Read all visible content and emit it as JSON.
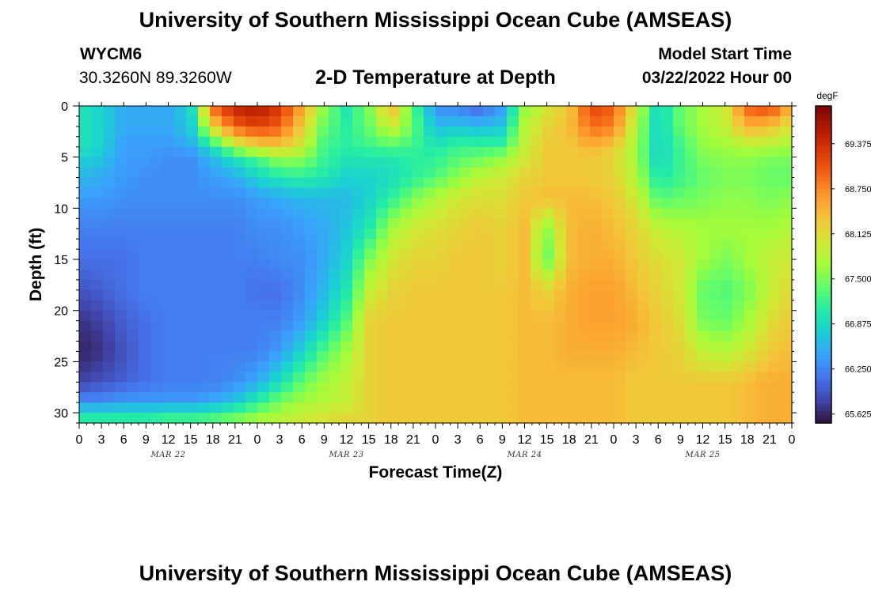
{
  "header": {
    "title": "University of Southern Mississippi Ocean Cube (AMSEAS)",
    "station": "WYCM6",
    "coords": "30.3260N  89.3260W",
    "plot_title": "2-D Temperature at Depth",
    "model_start_label": "Model Start Time",
    "model_start_value": "03/22/2022 Hour 00"
  },
  "footer": {
    "title": "University of Southern Mississippi Ocean Cube (AMSEAS)"
  },
  "colors": {
    "scale": [
      "#30123b",
      "#4145ab",
      "#4675ed",
      "#39a2fc",
      "#1bcfd4",
      "#24eca6",
      "#61fc6c",
      "#a4fc3b",
      "#d1e834",
      "#f3c63a",
      "#fe9b2d",
      "#f36315",
      "#d93806",
      "#b11901",
      "#7a0402"
    ]
  },
  "chart_data": {
    "type": "heatmap",
    "title": "2-D Temperature at Depth",
    "xlabel": "Forecast Time(Z)",
    "ylabel": "Depth (ft)",
    "x_hours_range": [
      0,
      96
    ],
    "y_depth_range": [
      0,
      31
    ],
    "x_tick_labels": [
      "0",
      "3",
      "6",
      "9",
      "12",
      "15",
      "18",
      "21",
      "0",
      "3",
      "6",
      "9",
      "12",
      "15",
      "18",
      "21",
      "0",
      "3",
      "6",
      "9",
      "12",
      "15",
      "18",
      "21",
      "0",
      "3",
      "6",
      "9",
      "12",
      "15",
      "18",
      "21",
      "0"
    ],
    "date_labels": [
      {
        "label": "MAR 22",
        "hour": 12
      },
      {
        "label": "MAR 23",
        "hour": 36
      },
      {
        "label": "MAR 24",
        "hour": 60
      },
      {
        "label": "MAR 25",
        "hour": 84
      }
    ],
    "y_ticks": [
      0,
      5,
      10,
      15,
      20,
      25,
      30
    ],
    "colorbar": {
      "unit": "degF",
      "min": 65.5,
      "max": 69.9,
      "ticks": [
        65.625,
        66.25,
        66.875,
        67.5,
        68.125,
        68.75,
        69.375
      ],
      "tick_labels": [
        "65.625",
        "66.250",
        "66.875",
        "67.500",
        "68.125",
        "68.750",
        "69.375"
      ]
    },
    "grid": {
      "depths": [
        0,
        2,
        4,
        5,
        7,
        9,
        12,
        15,
        18,
        21,
        24,
        27,
        29,
        30,
        31
      ],
      "hours": [
        0,
        3,
        6,
        9,
        12,
        15,
        18,
        21,
        24,
        27,
        30,
        33,
        36,
        39,
        42,
        45,
        48,
        51,
        54,
        57,
        60,
        63,
        66,
        69,
        72,
        75,
        78,
        81,
        84,
        87,
        90,
        93,
        96
      ],
      "values": [
        [
          67.0,
          66.8,
          66.5,
          66.5,
          66.5,
          66.8,
          69.0,
          69.5,
          69.6,
          69.3,
          68.6,
          67.6,
          67.0,
          67.5,
          68.5,
          67.3,
          66.3,
          66.2,
          66.0,
          66.4,
          67.6,
          68.0,
          68.3,
          69.2,
          69.0,
          68.0,
          66.8,
          67.4,
          67.7,
          68.0,
          69.0,
          69.2,
          68.5
        ],
        [
          67.0,
          66.8,
          66.5,
          66.5,
          66.5,
          66.7,
          68.2,
          69.0,
          69.2,
          69.0,
          68.3,
          67.4,
          67.1,
          67.4,
          68.0,
          67.4,
          66.6,
          66.7,
          66.6,
          66.7,
          67.8,
          68.2,
          68.4,
          68.9,
          68.8,
          67.8,
          66.8,
          67.4,
          67.7,
          67.9,
          68.5,
          68.4,
          68.0
        ],
        [
          67.0,
          66.8,
          66.4,
          66.4,
          66.4,
          66.5,
          67.0,
          67.8,
          68.2,
          68.3,
          68.0,
          67.2,
          67.1,
          67.2,
          67.3,
          67.2,
          67.0,
          67.2,
          67.2,
          67.2,
          67.9,
          68.3,
          68.3,
          68.5,
          68.3,
          67.7,
          66.8,
          67.2,
          67.6,
          67.7,
          67.8,
          67.8,
          67.7
        ],
        [
          66.8,
          66.7,
          66.4,
          66.4,
          66.3,
          66.3,
          66.6,
          67.0,
          67.3,
          67.7,
          67.6,
          67.2,
          67.0,
          67.0,
          67.0,
          67.1,
          67.1,
          67.3,
          67.4,
          67.6,
          68.0,
          68.3,
          68.3,
          68.3,
          68.2,
          67.7,
          66.8,
          67.2,
          67.5,
          67.6,
          67.6,
          67.5,
          67.5
        ],
        [
          66.6,
          66.5,
          66.4,
          66.3,
          66.3,
          66.3,
          66.4,
          66.5,
          66.8,
          67.0,
          67.1,
          67.0,
          66.8,
          66.8,
          66.9,
          67.1,
          67.3,
          67.6,
          67.9,
          68.0,
          68.2,
          68.3,
          68.3,
          68.3,
          68.2,
          67.8,
          67.0,
          67.2,
          67.4,
          67.5,
          67.5,
          67.4,
          67.4
        ],
        [
          66.4,
          66.4,
          66.3,
          66.3,
          66.3,
          66.3,
          66.3,
          66.3,
          66.4,
          66.5,
          66.6,
          66.6,
          66.6,
          66.8,
          67.1,
          67.5,
          67.8,
          68.0,
          68.1,
          68.1,
          68.3,
          68.4,
          68.4,
          68.4,
          68.3,
          68.0,
          67.3,
          67.4,
          67.5,
          67.6,
          67.6,
          67.5,
          67.6
        ],
        [
          66.2,
          66.2,
          66.2,
          66.2,
          66.2,
          66.2,
          66.2,
          66.2,
          66.3,
          66.3,
          66.4,
          66.5,
          66.7,
          67.0,
          67.7,
          68.0,
          68.1,
          68.2,
          68.3,
          68.2,
          68.4,
          67.6,
          68.4,
          68.5,
          68.4,
          68.2,
          67.9,
          67.8,
          67.7,
          67.7,
          67.7,
          67.7,
          67.8
        ],
        [
          66.1,
          66.1,
          66.1,
          66.2,
          66.2,
          66.2,
          66.2,
          66.2,
          66.2,
          66.3,
          66.3,
          66.5,
          66.8,
          67.5,
          68.0,
          68.2,
          68.2,
          68.3,
          68.3,
          68.2,
          68.4,
          67.4,
          68.4,
          68.5,
          68.5,
          68.3,
          68.1,
          68.0,
          67.7,
          67.5,
          67.7,
          67.9,
          68.0
        ],
        [
          65.9,
          66.0,
          66.1,
          66.2,
          66.2,
          66.2,
          66.2,
          66.2,
          66.1,
          66.1,
          66.3,
          66.6,
          67.0,
          67.9,
          68.2,
          68.3,
          68.3,
          68.3,
          68.3,
          68.3,
          68.4,
          68.2,
          68.5,
          68.6,
          68.6,
          68.4,
          68.2,
          68.0,
          67.4,
          67.3,
          67.5,
          67.9,
          68.2
        ],
        [
          65.7,
          65.8,
          66.0,
          66.1,
          66.2,
          66.2,
          66.2,
          66.2,
          66.2,
          66.2,
          66.4,
          66.8,
          67.3,
          68.2,
          68.3,
          68.3,
          68.3,
          68.3,
          68.3,
          68.3,
          68.4,
          68.4,
          68.5,
          68.6,
          68.6,
          68.5,
          68.3,
          68.1,
          67.5,
          67.4,
          67.7,
          68.1,
          68.3
        ],
        [
          65.6,
          65.7,
          65.9,
          66.1,
          66.2,
          66.2,
          66.2,
          66.2,
          66.2,
          66.4,
          66.8,
          67.3,
          67.7,
          68.2,
          68.3,
          68.3,
          68.3,
          68.3,
          68.3,
          68.3,
          68.4,
          68.4,
          68.5,
          68.5,
          68.5,
          68.4,
          68.3,
          68.2,
          67.9,
          67.8,
          68.0,
          68.3,
          68.4
        ],
        [
          65.8,
          65.9,
          66.0,
          66.1,
          66.2,
          66.2,
          66.2,
          66.3,
          66.5,
          66.9,
          67.4,
          67.7,
          67.9,
          68.2,
          68.3,
          68.3,
          68.3,
          68.3,
          68.3,
          68.3,
          68.4,
          68.4,
          68.4,
          68.4,
          68.4,
          68.3,
          68.3,
          68.3,
          68.3,
          68.3,
          68.4,
          68.5,
          68.5
        ],
        [
          66.3,
          66.3,
          66.4,
          66.4,
          66.4,
          66.4,
          66.5,
          66.7,
          67.1,
          67.5,
          67.7,
          67.8,
          67.9,
          68.2,
          68.3,
          68.3,
          68.3,
          68.3,
          68.3,
          68.3,
          68.4,
          68.4,
          68.4,
          68.4,
          68.4,
          68.3,
          68.3,
          68.3,
          68.3,
          68.3,
          68.4,
          68.5,
          68.5
        ],
        [
          66.9,
          66.9,
          66.9,
          66.9,
          67.0,
          67.0,
          67.1,
          67.3,
          67.5,
          67.7,
          67.9,
          68.0,
          68.1,
          68.2,
          68.3,
          68.3,
          68.3,
          68.3,
          68.3,
          68.3,
          68.4,
          68.4,
          68.4,
          68.4,
          68.4,
          68.3,
          68.3,
          68.3,
          68.3,
          68.3,
          68.4,
          68.5,
          68.5
        ],
        [
          67.2,
          67.2,
          67.2,
          67.2,
          67.3,
          67.3,
          67.4,
          67.6,
          67.8,
          67.9,
          68.0,
          68.1,
          68.2,
          68.2,
          68.3,
          68.3,
          68.3,
          68.3,
          68.3,
          68.3,
          68.4,
          68.4,
          68.4,
          68.4,
          68.4,
          68.3,
          68.3,
          68.3,
          68.3,
          68.3,
          68.4,
          68.5,
          68.5
        ]
      ]
    }
  }
}
